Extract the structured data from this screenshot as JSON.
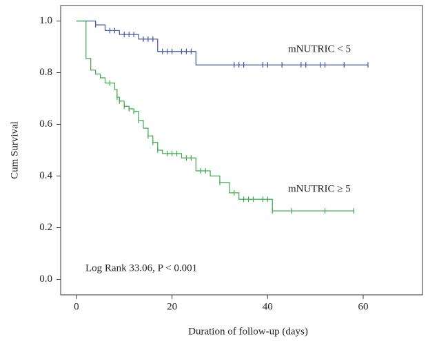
{
  "chart_data": {
    "type": "survival",
    "x_label": "Duration of follow-up (days)",
    "y_label": "Cum Survival",
    "annotation": "Log Rank 33.06, P < 0.001",
    "xlim": [
      -3.3,
      72.4
    ],
    "ylim": [
      -0.06,
      1.06
    ],
    "xticks": [
      0,
      20,
      40,
      60
    ],
    "yticks": [
      {
        "value": 0,
        "label": "0.0"
      },
      0.2,
      0.4,
      0.6,
      0.8,
      {
        "value": 1,
        "label": "1.0"
      }
    ],
    "series": [
      {
        "name": "mNUTRIC < 5",
        "color": "#3b55a5",
        "x": [
          0,
          4,
          6,
          9,
          13,
          17,
          25,
          61
        ],
        "values": [
          1.0,
          0.985,
          0.963,
          0.948,
          0.93,
          0.882,
          0.83,
          0.83
        ],
        "censored_x": [
          4,
          7,
          8,
          10,
          11,
          12,
          14,
          15,
          16,
          18,
          19,
          20,
          22,
          23,
          24,
          33,
          34,
          35,
          39,
          40,
          43,
          47,
          48,
          51,
          52,
          56,
          61
        ],
        "censored_values": [
          0.985,
          0.963,
          0.963,
          0.948,
          0.948,
          0.948,
          0.93,
          0.93,
          0.93,
          0.882,
          0.882,
          0.882,
          0.882,
          0.882,
          0.882,
          0.83,
          0.83,
          0.83,
          0.83,
          0.83,
          0.83,
          0.83,
          0.83,
          0.83,
          0.83,
          0.83,
          0.83
        ]
      },
      {
        "name": "mNUTRIC ≥ 5",
        "color": "#3aaa4a",
        "x": [
          0,
          2,
          3,
          4,
          5,
          6,
          8,
          8.5,
          9,
          10,
          11,
          12,
          13,
          14,
          15,
          16,
          17,
          18,
          22,
          25,
          28,
          30,
          32,
          34,
          41,
          58
        ],
        "values": [
          1.0,
          0.855,
          0.81,
          0.795,
          0.78,
          0.76,
          0.735,
          0.705,
          0.69,
          0.67,
          0.66,
          0.65,
          0.615,
          0.585,
          0.555,
          0.53,
          0.5,
          0.487,
          0.47,
          0.42,
          0.4,
          0.375,
          0.335,
          0.31,
          0.265,
          0.265
        ],
        "censored_x": [
          7,
          8.5,
          9,
          10,
          11,
          12,
          13,
          15,
          16,
          17,
          19,
          20,
          21,
          23,
          24,
          26,
          27,
          30,
          33,
          35,
          36,
          37,
          39,
          40,
          41,
          45,
          52,
          58
        ],
        "censored_values": [
          0.76,
          0.705,
          0.69,
          0.67,
          0.66,
          0.65,
          0.615,
          0.555,
          0.53,
          0.5,
          0.487,
          0.487,
          0.487,
          0.47,
          0.47,
          0.42,
          0.42,
          0.375,
          0.335,
          0.31,
          0.31,
          0.31,
          0.31,
          0.31,
          0.265,
          0.265,
          0.265,
          0.265
        ]
      }
    ]
  }
}
